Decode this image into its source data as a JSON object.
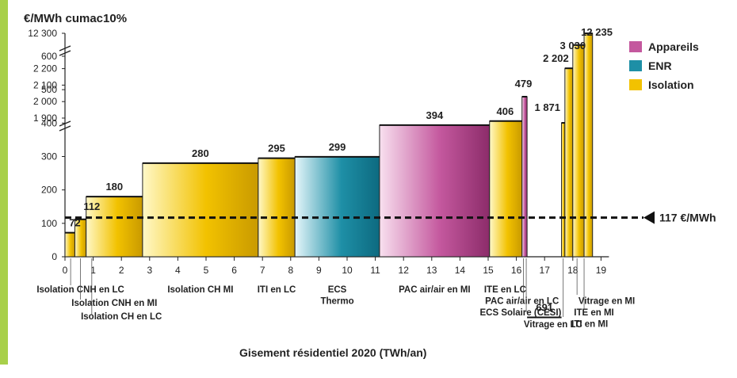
{
  "accent_color": "#a8d04a",
  "chart_data": {
    "type": "bar",
    "title": "€/MWh cumac10%",
    "xlabel": "Gisement résidentiel 2020 (TWh/an)",
    "x_ticks": [
      "0",
      "1",
      "2",
      "3",
      "4",
      "5",
      "6",
      "7",
      "8",
      "9",
      "10",
      "11",
      "12",
      "13",
      "14",
      "15",
      "16",
      "17",
      "18",
      "19"
    ],
    "y_ticks_lower": [
      "0",
      "100",
      "200",
      "300",
      "400",
      "500",
      "600"
    ],
    "y_ticks_upper": [
      "1 900",
      "2 000",
      "2 100",
      "2 200",
      "12 300"
    ],
    "threshold": {
      "value": 117,
      "label": "117 €/MWh"
    },
    "legend": [
      {
        "name": "Appareils",
        "color": "#c4589e"
      },
      {
        "name": "ENR",
        "color": "#1e8fa6"
      },
      {
        "name": "Isolation",
        "color": "#f2c200"
      }
    ],
    "bars": [
      {
        "x0": 0.0,
        "x1": 0.35,
        "value": 72,
        "label": "72",
        "cat": "Isolation"
      },
      {
        "x0": 0.35,
        "x1": 0.75,
        "value": 112,
        "label": "112",
        "cat": "Isolation"
      },
      {
        "x0": 0.75,
        "x1": 2.75,
        "value": 180,
        "label": "180",
        "cat": "Isolation"
      },
      {
        "x0": 2.75,
        "x1": 6.85,
        "value": 280,
        "label": "280",
        "cat": "Isolation"
      },
      {
        "x0": 6.85,
        "x1": 8.15,
        "value": 295,
        "label": "295",
        "cat": "Isolation"
      },
      {
        "x0": 8.15,
        "x1": 11.15,
        "value": 299,
        "label": "299",
        "cat": "ENR"
      },
      {
        "x0": 11.15,
        "x1": 15.05,
        "value": 394,
        "label": "394",
        "cat": "Appareils"
      },
      {
        "x0": 15.05,
        "x1": 16.2,
        "value": 406,
        "label": "406",
        "cat": "Isolation"
      },
      {
        "x0": 16.2,
        "x1": 16.38,
        "value": 479,
        "label": "479",
        "cat": "Appareils"
      },
      {
        "x0": 16.38,
        "x1": 17.6,
        "value": 691,
        "label": "691",
        "cat": "ENR"
      },
      {
        "x0": 17.6,
        "x1": 17.72,
        "value": 1871,
        "label": "1 871",
        "cat": "Isolation"
      },
      {
        "x0": 17.72,
        "x1": 18.0,
        "value": 2202,
        "label": "2 202",
        "cat": "Isolation"
      },
      {
        "x0": 18.0,
        "x1": 18.4,
        "value": 3030,
        "label": "3 030",
        "cat": "Isolation"
      },
      {
        "x0": 18.4,
        "x1": 18.7,
        "value": 12235,
        "label": "12 235",
        "cat": "Isolation"
      }
    ],
    "annotations": [
      {
        "text": "Isolation CNH en LC",
        "x": 0.55,
        "row": 0
      },
      {
        "text": "Isolation CNH en MI",
        "x": 1.75,
        "row": 1
      },
      {
        "text": "Isolation CH en LC",
        "x": 2.0,
        "row": 2
      },
      {
        "text": "Isolation CH MI",
        "x": 4.8,
        "row": 0
      },
      {
        "text": "ITI en LC",
        "x": 7.5,
        "row": 0
      },
      {
        "text": "ECS",
        "x": 9.65,
        "row": 0
      },
      {
        "text": "Thermo",
        "x": 9.65,
        "row": 0.85
      },
      {
        "text": "PAC air/air en MI",
        "x": 13.1,
        "row": 0
      },
      {
        "text": "ITE en LC",
        "x": 15.6,
        "row": 0
      },
      {
        "text": "PAC air/air en LC",
        "x": 16.2,
        "row": 0.85
      },
      {
        "text": "ECS Solaire (CESI)",
        "x": 16.15,
        "row": 1.7
      },
      {
        "text": "Vitrage en LC",
        "x": 17.3,
        "row": 2.6
      },
      {
        "text": "Vitrage en MI",
        "x": 19.2,
        "row": 0.85
      },
      {
        "text": "ITE en MI",
        "x": 18.75,
        "row": 1.7
      },
      {
        "text": "ITI en MI",
        "x": 18.6,
        "row": 2.55
      }
    ]
  }
}
